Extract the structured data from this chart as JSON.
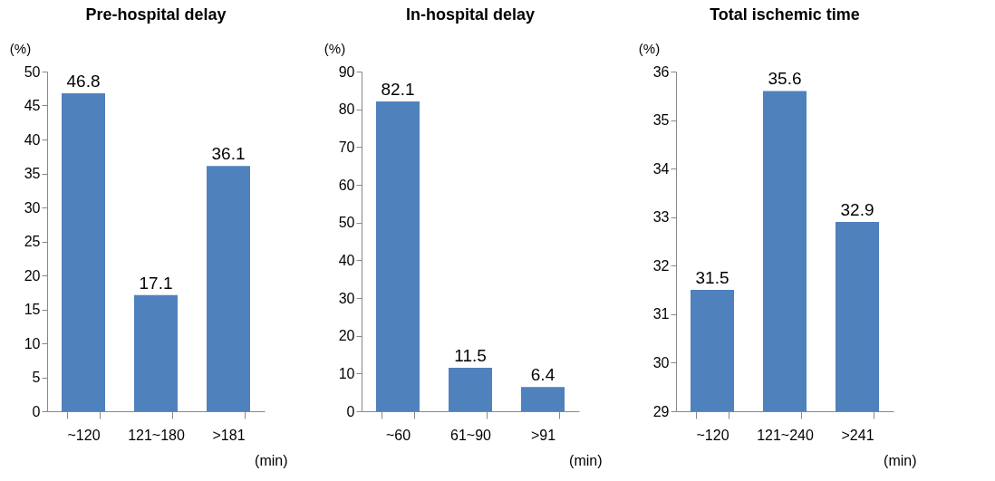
{
  "chart_data": [
    {
      "type": "bar",
      "title": "Pre-hospital delay",
      "ylabel": "(%)",
      "xlabel": "(min)",
      "categories": [
        "~120",
        "121~180",
        ">181"
      ],
      "values": [
        46.8,
        17.1,
        36.1
      ],
      "color": "#4f81bd",
      "ylim": [
        0,
        50
      ],
      "yticks": [
        0,
        5,
        10,
        15,
        20,
        25,
        30,
        35,
        40,
        45,
        50
      ],
      "data_labels": true,
      "grid": false
    },
    {
      "type": "bar",
      "title": "In-hospital delay",
      "ylabel": "(%)",
      "xlabel": "(min)",
      "categories": [
        "~60",
        "61~90",
        ">91"
      ],
      "values": [
        82.1,
        11.5,
        6.4
      ],
      "color": "#4f81bd",
      "ylim": [
        0,
        90
      ],
      "yticks": [
        0,
        10,
        20,
        30,
        40,
        50,
        60,
        70,
        80,
        90
      ],
      "data_labels": true,
      "grid": false
    },
    {
      "type": "bar",
      "title": "Total ischemic time",
      "ylabel": "(%)",
      "xlabel": "(min)",
      "categories": [
        "~120",
        "121~240",
        ">241"
      ],
      "values": [
        31.5,
        35.6,
        32.9
      ],
      "color": "#4f81bd",
      "ylim": [
        29,
        36
      ],
      "yticks": [
        29,
        30,
        31,
        32,
        33,
        34,
        35,
        36
      ],
      "data_labels": true,
      "grid": false
    }
  ]
}
